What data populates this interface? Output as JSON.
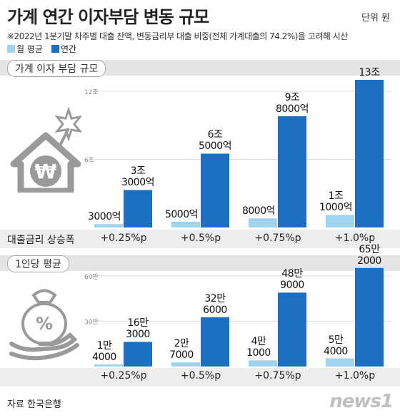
{
  "header": {
    "title": "가계 연간 이자부담 변동 규모",
    "unit": "단위 원",
    "note": "※2022년 1분기말 차주별 대출 잔액, 변동금리부 대출 비중(전체 가계대출의 74.2%)을 고려해 시산",
    "legend": [
      {
        "label": "월 평균",
        "color": "#9fd3ef"
      },
      {
        "label": "연간",
        "color": "#1d6fc3"
      }
    ]
  },
  "footer": {
    "source": "자료 한국은행",
    "logo": "news1"
  },
  "chart_data": [
    {
      "type": "bar",
      "section_label": "가계 이자 부담 규모",
      "category_title": "대출금리 상승폭",
      "categories": [
        "+0.25%p",
        "+0.5%p",
        "+0.75%p",
        "+1.0%p"
      ],
      "yticks": [
        {
          "value": 6,
          "label": "6조"
        },
        {
          "value": 12,
          "label": "12조"
        }
      ],
      "ylim": [
        0,
        13.5
      ],
      "series": [
        {
          "name": "월 평균",
          "values": [
            0.3,
            0.5,
            0.8,
            1.1
          ],
          "labels": [
            "3000억",
            "5000억",
            "8000억",
            "1조\n1000억"
          ]
        },
        {
          "name": "연간",
          "values": [
            3.3,
            6.5,
            9.8,
            13.0
          ],
          "labels": [
            "3조\n3000억",
            "6조\n5000억",
            "9조\n8000억",
            "13조"
          ]
        }
      ]
    },
    {
      "type": "bar",
      "section_label": "1인당 평균",
      "categories": [
        "+0.25%p",
        "+0.5%p",
        "+0.75%p",
        "+1.0%p"
      ],
      "yticks": [
        {
          "value": 30,
          "label": "30만"
        },
        {
          "value": 60,
          "label": "60만"
        }
      ],
      "ylim": [
        0,
        67
      ],
      "series": [
        {
          "name": "월 평균",
          "values": [
            1.4,
            2.7,
            4.1,
            5.4
          ],
          "labels": [
            "1만\n4000",
            "2만\n7000",
            "4만\n1000",
            "5만\n4000"
          ]
        },
        {
          "name": "연간",
          "values": [
            16.3,
            32.6,
            48.9,
            65.2
          ],
          "labels": [
            "16만\n3000",
            "32만\n6000",
            "48만\n9000",
            "65만\n2000"
          ]
        }
      ]
    }
  ]
}
